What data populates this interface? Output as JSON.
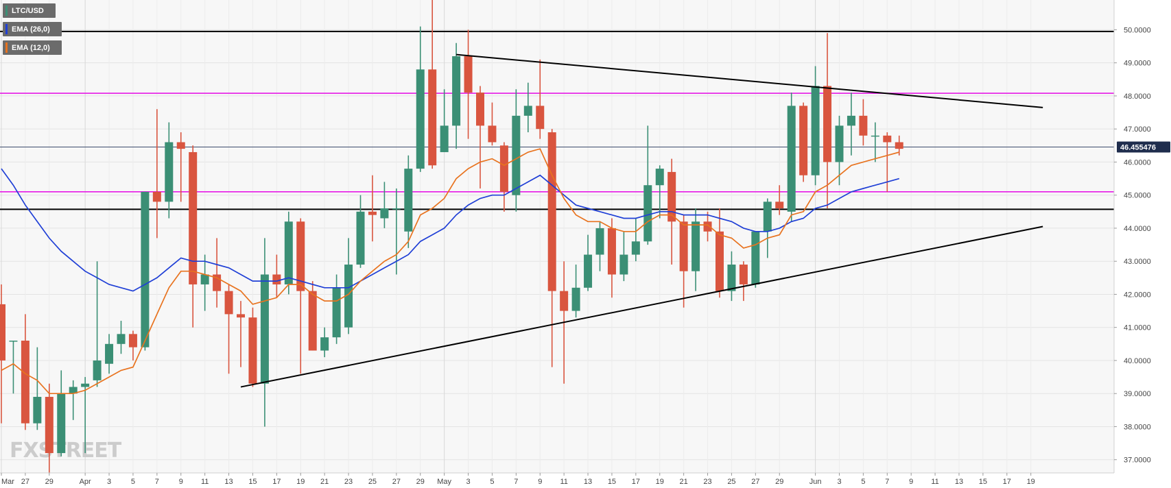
{
  "chart_data": {
    "type": "candlestick",
    "symbol": "LTC/USD",
    "indicators": [
      {
        "name": "EMA (26,0)",
        "color": "#1f3fd6"
      },
      {
        "name": "EMA (12,0)",
        "color": "#e8731f"
      }
    ],
    "current_price": "46.455476",
    "y_axis": {
      "min": 36.6,
      "max": 50.9,
      "ticks": [
        "37.0000",
        "38.0000",
        "39.0000",
        "40.0000",
        "41.0000",
        "42.0000",
        "43.0000",
        "44.0000",
        "45.0000",
        "46.0000",
        "47.0000",
        "48.0000",
        "49.0000",
        "50.0000"
      ]
    },
    "x_axis": {
      "labels": [
        "Mar",
        "27",
        "29",
        "Apr",
        "3",
        "5",
        "7",
        "9",
        "11",
        "13",
        "15",
        "17",
        "19",
        "21",
        "23",
        "25",
        "27",
        "29",
        "May",
        "3",
        "5",
        "7",
        "9",
        "11",
        "13",
        "15",
        "17",
        "19",
        "21",
        "23",
        "25",
        "27",
        "29",
        "Jun",
        "3",
        "5",
        "7",
        "9",
        "11",
        "13",
        "15",
        "17",
        "19"
      ]
    },
    "candles": [
      {
        "date": "Mar 25",
        "o": 41.7,
        "h": 42.3,
        "l": 38.1,
        "c": 40.0
      },
      {
        "date": "Mar 26",
        "o": 40.6,
        "h": 40.6,
        "l": 39.0,
        "c": 40.6
      },
      {
        "date": "Mar 27",
        "o": 40.6,
        "h": 41.4,
        "l": 37.9,
        "c": 38.1
      },
      {
        "date": "Mar 28",
        "o": 38.1,
        "h": 40.4,
        "l": 37.9,
        "c": 38.9
      },
      {
        "date": "Mar 29",
        "o": 38.9,
        "h": 39.3,
        "l": 36.6,
        "c": 37.2
      },
      {
        "date": "Mar 30",
        "o": 37.2,
        "h": 39.7,
        "l": 37.1,
        "c": 39.0
      },
      {
        "date": "Mar 31",
        "o": 39.0,
        "h": 39.4,
        "l": 38.2,
        "c": 39.2
      },
      {
        "date": "Apr 1",
        "o": 39.2,
        "h": 39.5,
        "l": 37.2,
        "c": 39.3
      },
      {
        "date": "Apr 2",
        "o": 39.4,
        "h": 43.0,
        "l": 39.2,
        "c": 40.0
      },
      {
        "date": "Apr 3",
        "o": 39.9,
        "h": 40.8,
        "l": 39.6,
        "c": 40.5
      },
      {
        "date": "Apr 4",
        "o": 40.5,
        "h": 41.2,
        "l": 40.2,
        "c": 40.8
      },
      {
        "date": "Apr 5",
        "o": 40.8,
        "h": 40.9,
        "l": 40.0,
        "c": 40.4
      },
      {
        "date": "Apr 6",
        "o": 40.4,
        "h": 45.1,
        "l": 40.3,
        "c": 45.1
      },
      {
        "date": "Apr 7",
        "o": 45.1,
        "h": 47.6,
        "l": 43.7,
        "c": 44.8
      },
      {
        "date": "Apr 8",
        "o": 44.8,
        "h": 47.2,
        "l": 44.3,
        "c": 46.6
      },
      {
        "date": "Apr 9",
        "o": 46.6,
        "h": 46.9,
        "l": 44.8,
        "c": 46.4
      },
      {
        "date": "Apr 10",
        "o": 46.3,
        "h": 46.5,
        "l": 41.0,
        "c": 42.3
      },
      {
        "date": "Apr 11",
        "o": 42.3,
        "h": 43.2,
        "l": 41.5,
        "c": 42.6
      },
      {
        "date": "Apr 12",
        "o": 42.6,
        "h": 43.7,
        "l": 41.6,
        "c": 42.1
      },
      {
        "date": "Apr 13",
        "o": 42.1,
        "h": 42.3,
        "l": 39.6,
        "c": 41.4
      },
      {
        "date": "Apr 14",
        "o": 41.4,
        "h": 41.8,
        "l": 39.8,
        "c": 41.3
      },
      {
        "date": "Apr 15",
        "o": 41.3,
        "h": 41.6,
        "l": 39.2,
        "c": 39.3
      },
      {
        "date": "Apr 16",
        "o": 39.3,
        "h": 43.7,
        "l": 38.0,
        "c": 42.6
      },
      {
        "date": "Apr 17",
        "o": 42.6,
        "h": 43.2,
        "l": 41.9,
        "c": 42.3
      },
      {
        "date": "Apr 18",
        "o": 42.3,
        "h": 44.5,
        "l": 42.0,
        "c": 44.2
      },
      {
        "date": "Apr 19",
        "o": 44.2,
        "h": 44.3,
        "l": 39.6,
        "c": 42.1
      },
      {
        "date": "Apr 20",
        "o": 42.1,
        "h": 42.4,
        "l": 40.3,
        "c": 40.3
      },
      {
        "date": "Apr 21",
        "o": 40.3,
        "h": 41.0,
        "l": 40.1,
        "c": 40.7
      },
      {
        "date": "Apr 22",
        "o": 40.7,
        "h": 42.6,
        "l": 40.5,
        "c": 42.2
      },
      {
        "date": "Apr 23",
        "o": 41.0,
        "h": 43.7,
        "l": 40.8,
        "c": 42.9
      },
      {
        "date": "Apr 24",
        "o": 42.9,
        "h": 45.0,
        "l": 42.8,
        "c": 44.5
      },
      {
        "date": "Apr 25",
        "o": 44.5,
        "h": 45.6,
        "l": 43.6,
        "c": 44.4
      },
      {
        "date": "Apr 26",
        "o": 44.3,
        "h": 45.4,
        "l": 44.0,
        "c": 44.6
      },
      {
        "date": "Apr 27",
        "o": 44.6,
        "h": 45.2,
        "l": 42.6,
        "c": 44.6
      },
      {
        "date": "Apr 28",
        "o": 43.9,
        "h": 46.2,
        "l": 43.4,
        "c": 45.8
      },
      {
        "date": "Apr 29",
        "o": 45.8,
        "h": 50.1,
        "l": 45.7,
        "c": 48.8
      },
      {
        "date": "Apr 30",
        "o": 48.8,
        "h": 50.9,
        "l": 45.8,
        "c": 45.9
      },
      {
        "date": "May 1",
        "o": 46.3,
        "h": 48.2,
        "l": 46.3,
        "c": 47.1
      },
      {
        "date": "May 2",
        "o": 47.1,
        "h": 49.6,
        "l": 46.4,
        "c": 49.2
      },
      {
        "date": "May 3",
        "o": 49.2,
        "h": 50.0,
        "l": 46.7,
        "c": 48.1
      },
      {
        "date": "May 4",
        "o": 48.1,
        "h": 48.3,
        "l": 45.2,
        "c": 47.1
      },
      {
        "date": "May 5",
        "o": 47.1,
        "h": 47.8,
        "l": 46.5,
        "c": 46.6
      },
      {
        "date": "May 6",
        "o": 46.5,
        "h": 46.6,
        "l": 44.5,
        "c": 45.1
      },
      {
        "date": "May 7",
        "o": 45.0,
        "h": 48.2,
        "l": 44.5,
        "c": 47.4
      },
      {
        "date": "May 8",
        "o": 47.4,
        "h": 48.4,
        "l": 46.9,
        "c": 47.7
      },
      {
        "date": "May 9",
        "o": 47.7,
        "h": 49.1,
        "l": 46.7,
        "c": 47.0
      },
      {
        "date": "May 10",
        "o": 46.9,
        "h": 47.0,
        "l": 39.8,
        "c": 42.1
      },
      {
        "date": "May 11",
        "o": 42.1,
        "h": 43.0,
        "l": 39.3,
        "c": 41.5
      },
      {
        "date": "May 12",
        "o": 41.5,
        "h": 42.9,
        "l": 41.3,
        "c": 42.2
      },
      {
        "date": "May 13",
        "o": 42.2,
        "h": 43.8,
        "l": 42.1,
        "c": 43.2
      },
      {
        "date": "May 14",
        "o": 43.2,
        "h": 44.2,
        "l": 42.7,
        "c": 44.0
      },
      {
        "date": "May 15",
        "o": 44.0,
        "h": 44.3,
        "l": 41.9,
        "c": 42.6
      },
      {
        "date": "May 16",
        "o": 42.6,
        "h": 43.9,
        "l": 42.4,
        "c": 43.2
      },
      {
        "date": "May 17",
        "o": 43.2,
        "h": 44.3,
        "l": 43.0,
        "c": 43.6
      },
      {
        "date": "May 18",
        "o": 43.6,
        "h": 47.1,
        "l": 43.5,
        "c": 45.3
      },
      {
        "date": "May 19",
        "o": 45.3,
        "h": 45.9,
        "l": 44.3,
        "c": 45.8
      },
      {
        "date": "May 20",
        "o": 45.7,
        "h": 46.1,
        "l": 42.9,
        "c": 44.2
      },
      {
        "date": "May 21",
        "o": 44.2,
        "h": 44.4,
        "l": 41.6,
        "c": 42.7
      },
      {
        "date": "May 22",
        "o": 42.7,
        "h": 44.6,
        "l": 42.1,
        "c": 44.2
      },
      {
        "date": "May 23",
        "o": 44.2,
        "h": 44.5,
        "l": 43.6,
        "c": 43.9
      },
      {
        "date": "May 24",
        "o": 43.9,
        "h": 44.6,
        "l": 41.9,
        "c": 42.1
      },
      {
        "date": "May 25",
        "o": 42.1,
        "h": 43.3,
        "l": 41.8,
        "c": 42.9
      },
      {
        "date": "May 26",
        "o": 42.9,
        "h": 43.0,
        "l": 41.8,
        "c": 42.3
      },
      {
        "date": "May 27",
        "o": 42.3,
        "h": 43.9,
        "l": 42.2,
        "c": 43.9
      },
      {
        "date": "May 28",
        "o": 43.9,
        "h": 44.9,
        "l": 43.1,
        "c": 44.8
      },
      {
        "date": "May 29",
        "o": 44.8,
        "h": 45.3,
        "l": 44.4,
        "c": 44.6
      },
      {
        "date": "May 30",
        "o": 44.5,
        "h": 48.1,
        "l": 44.2,
        "c": 47.7
      },
      {
        "date": "May 31",
        "o": 47.7,
        "h": 47.8,
        "l": 45.4,
        "c": 45.6
      },
      {
        "date": "Jun 1",
        "o": 45.6,
        "h": 48.9,
        "l": 45.3,
        "c": 48.3
      },
      {
        "date": "Jun 2",
        "o": 48.3,
        "h": 49.9,
        "l": 44.6,
        "c": 46.0
      },
      {
        "date": "Jun 3",
        "o": 46.0,
        "h": 47.4,
        "l": 45.3,
        "c": 47.1
      },
      {
        "date": "Jun 4",
        "o": 47.1,
        "h": 48.1,
        "l": 46.2,
        "c": 47.4
      },
      {
        "date": "Jun 5",
        "o": 47.4,
        "h": 47.9,
        "l": 46.5,
        "c": 46.8
      },
      {
        "date": "Jun 6",
        "o": 46.8,
        "h": 47.2,
        "l": 46.0,
        "c": 46.8
      },
      {
        "date": "Jun 7",
        "o": 46.8,
        "h": 46.9,
        "l": 45.1,
        "c": 46.6
      },
      {
        "date": "Jun 8",
        "o": 46.6,
        "h": 46.8,
        "l": 46.2,
        "c": 46.4
      }
    ],
    "ema12": [
      39.7,
      39.9,
      39.6,
      39.4,
      39.0,
      39.0,
      39.0,
      39.1,
      39.3,
      39.5,
      39.7,
      39.8,
      40.6,
      41.4,
      42.2,
      42.7,
      42.7,
      42.6,
      42.5,
      42.3,
      42.1,
      41.7,
      41.8,
      41.9,
      42.3,
      42.3,
      42.0,
      41.8,
      41.8,
      42.0,
      42.4,
      42.7,
      43.0,
      43.2,
      43.6,
      44.4,
      44.6,
      44.9,
      45.5,
      45.8,
      46.0,
      46.1,
      45.9,
      46.1,
      46.3,
      46.4,
      45.6,
      44.9,
      44.4,
      44.2,
      44.2,
      44.0,
      43.9,
      43.9,
      44.2,
      44.4,
      44.4,
      44.1,
      44.1,
      44.1,
      43.8,
      43.7,
      43.4,
      43.5,
      43.7,
      43.8,
      44.4,
      44.5,
      45.1,
      45.3,
      45.6,
      45.9,
      46.0,
      46.1,
      46.2,
      46.3
    ],
    "ema26": [
      45.8,
      45.3,
      44.7,
      44.2,
      43.7,
      43.3,
      43.0,
      42.7,
      42.5,
      42.3,
      42.2,
      42.1,
      42.3,
      42.5,
      42.8,
      43.1,
      43.0,
      43.0,
      42.9,
      42.8,
      42.6,
      42.4,
      42.4,
      42.4,
      42.5,
      42.4,
      42.3,
      42.2,
      42.2,
      42.2,
      42.4,
      42.6,
      42.8,
      43.0,
      43.2,
      43.6,
      43.8,
      44.0,
      44.4,
      44.7,
      44.9,
      45.0,
      45.0,
      45.2,
      45.4,
      45.6,
      45.3,
      45.0,
      44.7,
      44.6,
      44.5,
      44.4,
      44.3,
      44.3,
      44.4,
      44.5,
      44.5,
      44.4,
      44.4,
      44.4,
      44.3,
      44.2,
      44.0,
      43.9,
      43.9,
      44.0,
      44.2,
      44.3,
      44.6,
      44.7,
      44.9,
      45.1,
      45.2,
      45.3,
      45.4,
      45.5
    ],
    "horizontal_levels": [
      {
        "value": 49.95,
        "color": "#000000"
      },
      {
        "value": 48.08,
        "color": "#e619e6"
      },
      {
        "value": 45.1,
        "color": "#e619e6"
      },
      {
        "value": 44.57,
        "color": "#000000"
      }
    ],
    "trend_lines": [
      {
        "from": {
          "date": "Apr 14",
          "price": 39.2
        },
        "to": {
          "date": "Jun 20",
          "price": 44.05
        },
        "color": "#000000"
      },
      {
        "from": {
          "date": "May 2",
          "price": 49.25
        },
        "to": {
          "date": "Jun 20",
          "price": 47.65
        },
        "color": "#000000"
      }
    ],
    "colors": {
      "up": "#3b8f75",
      "down": "#d9553f"
    },
    "watermark": "FXSTREET"
  }
}
